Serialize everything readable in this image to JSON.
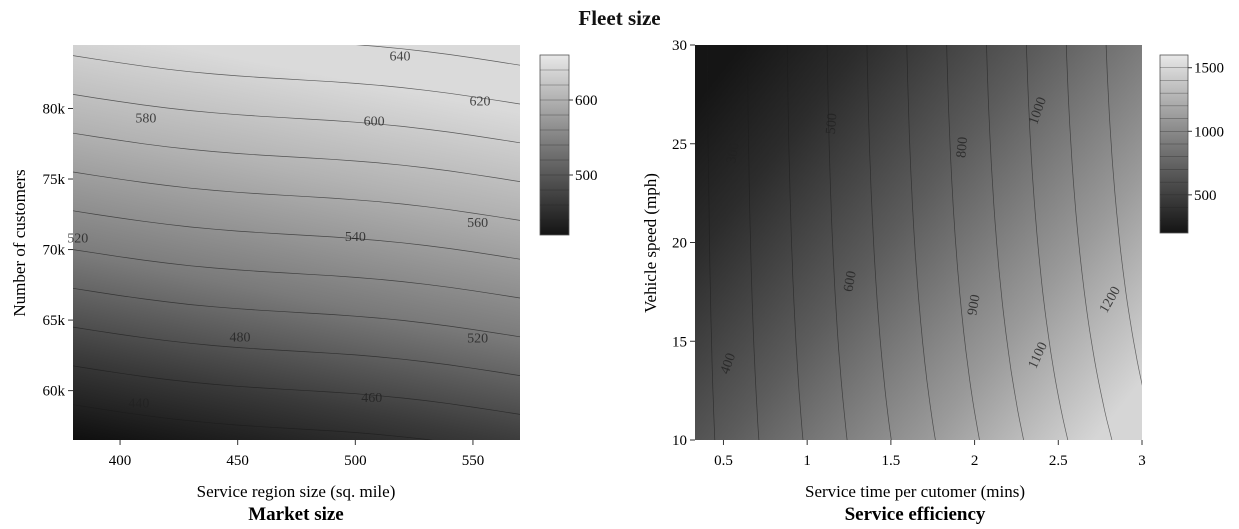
{
  "title": "Fleet size",
  "chart_data": [
    {
      "type": "heatmap",
      "subtitle": "Market size",
      "xlabel": "Service region size (sq. mile)",
      "ylabel": "Number of customers",
      "xlim": [
        380,
        570
      ],
      "ylim": [
        56500,
        84500
      ],
      "x_ticks": [
        400,
        450,
        500,
        550
      ],
      "x_tick_labels": [
        "400",
        "450",
        "500",
        "550"
      ],
      "y_ticks": [
        60000,
        65000,
        70000,
        75000,
        80000
      ],
      "y_tick_labels": [
        "60k",
        "65k",
        "70k",
        "75k",
        "80k"
      ],
      "colorbar": {
        "range": [
          420,
          660
        ],
        "ticks": [
          500,
          600
        ],
        "tick_labels": [
          "500",
          "600"
        ]
      },
      "contour_levels": [
        440,
        460,
        480,
        500,
        520,
        540,
        560,
        580,
        600,
        620,
        640
      ],
      "contour_labels": [
        {
          "text": "440",
          "x": 408,
          "y": 58800
        },
        {
          "text": "460",
          "x": 507,
          "y": 59200
        },
        {
          "text": "480",
          "x": 451,
          "y": 63500
        },
        {
          "text": "520",
          "x": 552,
          "y": 63400
        },
        {
          "text": "520",
          "x": 382,
          "y": 70500
        },
        {
          "text": "540",
          "x": 500,
          "y": 70600
        },
        {
          "text": "560",
          "x": 552,
          "y": 71600
        },
        {
          "text": "580",
          "x": 411,
          "y": 79000
        },
        {
          "text": "600",
          "x": 508,
          "y": 78800
        },
        {
          "text": "620",
          "x": 553,
          "y": 80200
        },
        {
          "text": "640",
          "x": 519,
          "y": 83400
        }
      ],
      "grid": false
    },
    {
      "type": "heatmap",
      "subtitle": "Service efficiency",
      "xlabel": "Service time per cutomer (mins)",
      "ylabel": "Vehicle speed (mph)",
      "xlim": [
        0.33,
        3.0
      ],
      "ylim": [
        10,
        30
      ],
      "x_ticks": [
        0.5,
        1,
        1.5,
        2,
        2.5,
        3
      ],
      "x_tick_labels": [
        "0.5",
        "1",
        "1.5",
        "2",
        "2.5",
        "3"
      ],
      "y_ticks": [
        10,
        15,
        20,
        25,
        30
      ],
      "y_tick_labels": [
        "10",
        "15",
        "20",
        "25",
        "30"
      ],
      "colorbar": {
        "range": [
          200,
          1600
        ],
        "ticks": [
          500,
          1000,
          1500
        ],
        "tick_labels": [
          "500",
          "1000",
          "1500"
        ]
      },
      "contour_levels": [
        300,
        400,
        500,
        600,
        700,
        800,
        900,
        1000,
        1100,
        1200,
        1300,
        1400,
        1500
      ],
      "contour_labels": [
        {
          "text": "300",
          "x": 0.58,
          "y": 24.5,
          "angle": -80
        },
        {
          "text": "400",
          "x": 0.55,
          "y": 13.8,
          "angle": -70
        },
        {
          "text": "500",
          "x": 1.17,
          "y": 26.0,
          "angle": -85
        },
        {
          "text": "600",
          "x": 1.28,
          "y": 18.0,
          "angle": -80
        },
        {
          "text": "800",
          "x": 1.95,
          "y": 24.8,
          "angle": -85
        },
        {
          "text": "900",
          "x": 2.02,
          "y": 16.8,
          "angle": -80
        },
        {
          "text": "1000",
          "x": 2.4,
          "y": 26.6,
          "angle": -70
        },
        {
          "text": "1100",
          "x": 2.4,
          "y": 14.2,
          "angle": -65
        },
        {
          "text": "1200",
          "x": 2.83,
          "y": 17.0,
          "angle": -60
        }
      ],
      "grid": false
    }
  ]
}
